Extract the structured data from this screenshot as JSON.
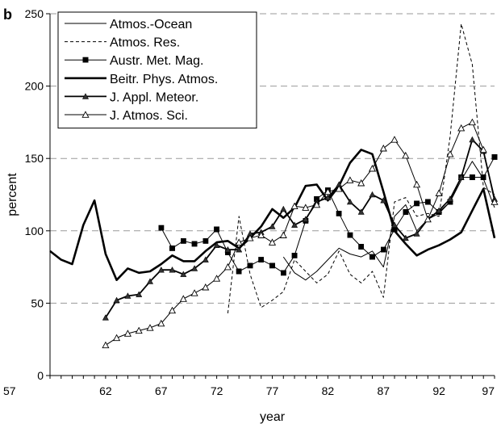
{
  "panel_label": "b",
  "chart_data": {
    "type": "line",
    "title": "",
    "xlabel": "year",
    "ylabel": "percent",
    "xlim": [
      57,
      97
    ],
    "ylim": [
      0,
      250
    ],
    "x_ticks": [
      57,
      62,
      67,
      72,
      77,
      82,
      87,
      92,
      97
    ],
    "y_ticks": [
      0,
      50,
      100,
      150,
      200,
      250
    ],
    "grid": "horizontal",
    "legend_position": "top-left",
    "series": [
      {
        "name": "Atmos.-Ocean",
        "style": "thin",
        "marker": "none",
        "x": [
          78,
          79,
          80,
          81,
          82,
          83,
          84,
          85,
          86,
          87,
          88,
          89,
          90,
          91,
          92,
          93,
          94,
          95,
          96,
          97
        ],
        "y": [
          82,
          71,
          66,
          72,
          80,
          88,
          84,
          82,
          86,
          75,
          110,
          118,
          100,
          108,
          112,
          120,
          135,
          148,
          136,
          116
        ]
      },
      {
        "name": "Atmos. Res.",
        "style": "dashed",
        "marker": "none",
        "x": [
          73,
          74,
          75,
          76,
          77,
          78,
          79,
          80,
          81,
          82,
          83,
          84,
          85,
          86,
          87,
          88,
          89,
          90,
          91,
          92,
          93,
          94,
          95,
          96,
          97
        ],
        "y": [
          43,
          110,
          70,
          47,
          52,
          58,
          80,
          72,
          64,
          70,
          86,
          70,
          64,
          72,
          54,
          120,
          123,
          110,
          112,
          110,
          165,
          243,
          215,
          130,
          125
        ]
      },
      {
        "name": "Austr. Met. Mag.",
        "style": "thin",
        "marker": "filled-square",
        "x": [
          67,
          68,
          69,
          70,
          71,
          72,
          73,
          74,
          75,
          76,
          77,
          78,
          79,
          80,
          81,
          82,
          83,
          84,
          85,
          86,
          87,
          88,
          89,
          90,
          91,
          92,
          93,
          94,
          95,
          96,
          97
        ],
        "y": [
          102,
          88,
          93,
          91,
          93,
          101,
          85,
          72,
          76,
          80,
          76,
          71,
          83,
          107,
          122,
          128,
          112,
          97,
          89,
          82,
          87,
          101,
          113,
          119,
          120,
          113,
          120,
          137,
          137,
          137,
          151
        ]
      },
      {
        "name": "Beitr. Phys. Atmos.",
        "style": "thick",
        "marker": "none",
        "x": [
          57,
          58,
          59,
          60,
          61,
          62,
          63,
          64,
          65,
          66,
          67,
          68,
          69,
          70,
          71,
          72,
          73,
          74,
          75,
          76,
          77,
          78,
          79,
          80,
          81,
          82,
          83,
          84,
          85,
          86,
          87,
          88,
          89,
          90,
          91,
          92,
          93,
          94,
          95,
          96,
          97
        ],
        "y": [
          86,
          80,
          77,
          104,
          121,
          84,
          66,
          74,
          71,
          72,
          77,
          83,
          79,
          79,
          86,
          92,
          93,
          88,
          95,
          103,
          115,
          109,
          116,
          131,
          132,
          121,
          131,
          147,
          156,
          153,
          127,
          100,
          91,
          83,
          87,
          90,
          94,
          99,
          114,
          129,
          95
        ]
      },
      {
        "name": "J. Appl. Meteor.",
        "style": "medium",
        "marker": "filled-triangle",
        "x": [
          62,
          63,
          64,
          65,
          66,
          67,
          68,
          69,
          70,
          71,
          72,
          73,
          74,
          75,
          76,
          77,
          78,
          79,
          80,
          81,
          82,
          83,
          84,
          85,
          86,
          87,
          88,
          89,
          90,
          91,
          92,
          93,
          94,
          95,
          96,
          97
        ],
        "y": [
          40,
          52,
          55,
          56,
          65,
          73,
          73,
          70,
          74,
          80,
          90,
          87,
          87,
          98,
          99,
          103,
          115,
          104,
          108,
          120,
          123,
          132,
          120,
          113,
          125,
          121,
          104,
          95,
          98,
          108,
          114,
          122,
          137,
          163,
          155,
          122
        ]
      },
      {
        "name": "J. Atmos. Sci.",
        "style": "thin",
        "marker": "open-triangle",
        "x": [
          62,
          63,
          64,
          65,
          66,
          67,
          68,
          69,
          70,
          71,
          72,
          73,
          74,
          75,
          76,
          77,
          78,
          79,
          80,
          81,
          82,
          83,
          84,
          85,
          86,
          87,
          88,
          89,
          90,
          91,
          92,
          93,
          94,
          95,
          96,
          97
        ],
        "y": [
          21,
          26,
          29,
          31,
          33,
          36,
          45,
          53,
          57,
          61,
          67,
          75,
          92,
          95,
          97,
          92,
          97,
          117,
          116,
          118,
          127,
          129,
          135,
          133,
          143,
          157,
          163,
          152,
          132,
          108,
          126,
          153,
          171,
          175,
          156,
          120
        ]
      }
    ]
  }
}
